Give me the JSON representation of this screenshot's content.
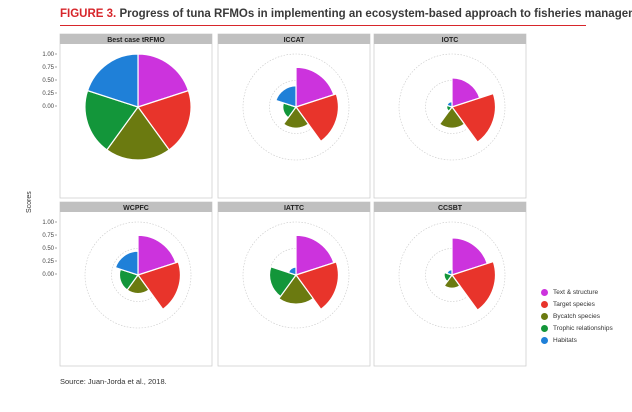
{
  "header": {
    "figure_label": "FIGURE 3.",
    "title_text": "Progress of tuna RFMOs in implementing an ecosystem-based approach to fisheries management"
  },
  "source_text": "Source: Juan-Jorda et al., 2018.",
  "colors": {
    "text_structure": "#cc33dd",
    "target_species": "#e8342b",
    "bycatch_species": "#6b7a10",
    "trophic": "#13963a",
    "habitats": "#1f80d8",
    "strip": "#c0c0c0",
    "title_red": "#d7262b"
  },
  "chart_data": {
    "type": "polar-area",
    "ylabel": "Scores",
    "y_ticks": [
      "1.00",
      "0.75",
      "0.50",
      "0.25",
      "0.00"
    ],
    "ylim": [
      0,
      1
    ],
    "grid": true,
    "legend_position": "right",
    "categories": [
      "Text & structure",
      "Target species",
      "Bycatch species",
      "Trophic relationships",
      "Habitats"
    ],
    "panels": [
      {
        "name": "Best case tRFMO",
        "values": [
          1.0,
          1.0,
          1.0,
          1.0,
          1.0
        ]
      },
      {
        "name": "ICCAT",
        "values": [
          0.75,
          0.8,
          0.4,
          0.25,
          0.4
        ]
      },
      {
        "name": "IOTC",
        "values": [
          0.55,
          0.82,
          0.4,
          0.1,
          0.1
        ]
      },
      {
        "name": "WCPFC",
        "values": [
          0.75,
          0.8,
          0.35,
          0.35,
          0.45
        ]
      },
      {
        "name": "IATTC",
        "values": [
          0.75,
          0.8,
          0.55,
          0.5,
          0.15
        ]
      },
      {
        "name": "CCSBT",
        "values": [
          0.7,
          0.82,
          0.25,
          0.15,
          0.1
        ]
      }
    ]
  }
}
